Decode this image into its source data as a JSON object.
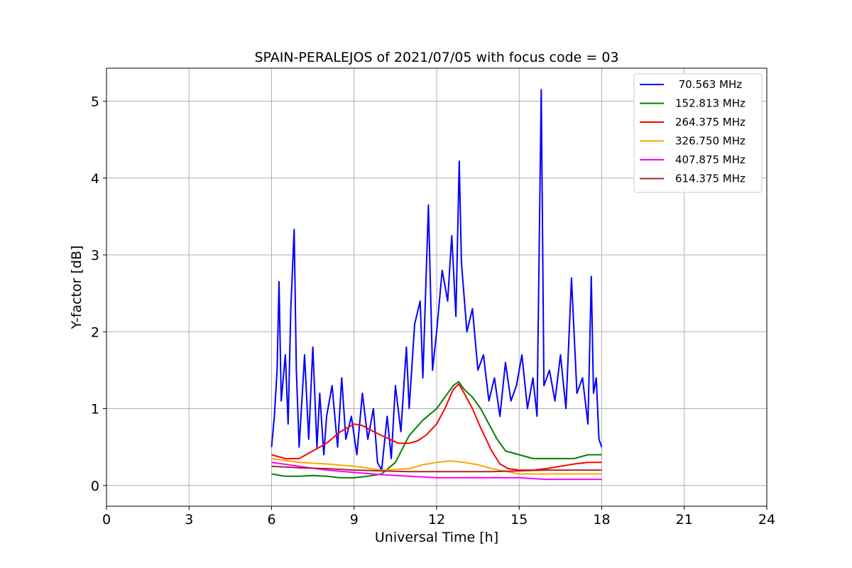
{
  "chart_data": {
    "type": "line",
    "title": "SPAIN-PERALEJOS of 2021/07/05 with focus code = 03",
    "xlabel": "Universal Time [h]",
    "ylabel": "Y-factor [dB]",
    "xlim": [
      0,
      24
    ],
    "ylim": [
      -0.27,
      5.43
    ],
    "xticks": [
      0,
      3,
      6,
      9,
      12,
      15,
      18,
      21,
      24
    ],
    "yticks": [
      0,
      1,
      2,
      3,
      4,
      5
    ],
    "grid": true,
    "legend_position": "top-right",
    "series": [
      {
        "name": " 70.563 MHz",
        "color": "#0000ff",
        "x": [
          6.0,
          6.1,
          6.2,
          6.27,
          6.35,
          6.5,
          6.6,
          6.7,
          6.82,
          6.9,
          7.0,
          7.2,
          7.35,
          7.5,
          7.65,
          7.75,
          7.9,
          8.0,
          8.2,
          8.4,
          8.55,
          8.7,
          8.9,
          9.1,
          9.3,
          9.5,
          9.7,
          9.85,
          10.0,
          10.2,
          10.35,
          10.5,
          10.7,
          10.9,
          11.0,
          11.2,
          11.4,
          11.5,
          11.7,
          11.85,
          12.0,
          12.2,
          12.4,
          12.55,
          12.7,
          12.82,
          12.9,
          13.1,
          13.3,
          13.5,
          13.7,
          13.9,
          14.1,
          14.3,
          14.5,
          14.7,
          14.9,
          15.1,
          15.3,
          15.5,
          15.65,
          15.8,
          15.9,
          16.1,
          16.3,
          16.5,
          16.7,
          16.9,
          17.1,
          17.3,
          17.5,
          17.62,
          17.7,
          17.8,
          17.9,
          18.0
        ],
        "y": [
          0.5,
          0.9,
          1.5,
          2.65,
          1.1,
          1.7,
          0.8,
          2.3,
          3.33,
          1.5,
          0.5,
          1.7,
          0.6,
          1.8,
          0.5,
          1.2,
          0.4,
          0.9,
          1.3,
          0.5,
          1.4,
          0.6,
          0.9,
          0.4,
          1.2,
          0.6,
          1.0,
          0.3,
          0.2,
          0.9,
          0.35,
          1.3,
          0.7,
          1.8,
          1.0,
          2.1,
          2.4,
          1.4,
          3.65,
          1.5,
          2.0,
          2.8,
          2.4,
          3.25,
          2.2,
          4.22,
          2.9,
          2.0,
          2.3,
          1.5,
          1.7,
          1.1,
          1.4,
          0.9,
          1.6,
          1.1,
          1.3,
          1.7,
          1.0,
          1.4,
          0.9,
          5.15,
          1.3,
          1.5,
          1.1,
          1.7,
          1.0,
          2.7,
          1.2,
          1.4,
          0.8,
          2.72,
          1.2,
          1.4,
          0.6,
          0.5
        ]
      },
      {
        "name": "152.813 MHz",
        "color": "#008000",
        "x": [
          6.0,
          6.5,
          7.0,
          7.5,
          8.0,
          8.5,
          9.0,
          9.5,
          10.0,
          10.5,
          11.0,
          11.5,
          12.0,
          12.3,
          12.6,
          12.8,
          13.0,
          13.3,
          13.6,
          13.9,
          14.2,
          14.5,
          15.0,
          15.5,
          16.0,
          16.5,
          17.0,
          17.5,
          18.0
        ],
        "y": [
          0.15,
          0.12,
          0.12,
          0.13,
          0.12,
          0.1,
          0.1,
          0.12,
          0.15,
          0.3,
          0.65,
          0.85,
          1.0,
          1.15,
          1.3,
          1.35,
          1.25,
          1.15,
          1.0,
          0.8,
          0.6,
          0.45,
          0.4,
          0.35,
          0.35,
          0.35,
          0.35,
          0.4,
          0.4
        ]
      },
      {
        "name": "264.375 MHz",
        "color": "#ff0000",
        "x": [
          6.0,
          6.5,
          7.0,
          7.5,
          8.0,
          8.5,
          9.0,
          9.3,
          9.6,
          10.0,
          10.3,
          10.6,
          11.0,
          11.3,
          11.6,
          12.0,
          12.3,
          12.6,
          12.8,
          13.0,
          13.3,
          13.6,
          14.0,
          14.3,
          14.6,
          15.0,
          15.5,
          16.0,
          16.5,
          17.0,
          17.5,
          18.0
        ],
        "y": [
          0.4,
          0.35,
          0.35,
          0.45,
          0.55,
          0.7,
          0.8,
          0.78,
          0.72,
          0.65,
          0.6,
          0.55,
          0.55,
          0.58,
          0.65,
          0.8,
          1.0,
          1.25,
          1.32,
          1.2,
          1.0,
          0.75,
          0.45,
          0.28,
          0.22,
          0.2,
          0.2,
          0.22,
          0.25,
          0.28,
          0.3,
          0.3
        ]
      },
      {
        "name": "326.750 MHz",
        "color": "#ffa500",
        "x": [
          6.0,
          7.0,
          8.0,
          9.0,
          10.0,
          11.0,
          11.5,
          12.0,
          12.5,
          13.0,
          13.5,
          14.0,
          15.0,
          16.0,
          17.0,
          18.0
        ],
        "y": [
          0.35,
          0.3,
          0.28,
          0.25,
          0.2,
          0.22,
          0.27,
          0.3,
          0.32,
          0.3,
          0.27,
          0.22,
          0.15,
          0.15,
          0.15,
          0.15
        ]
      },
      {
        "name": "407.875 MHz",
        "color": "#ff00ff",
        "x": [
          6.0,
          7.0,
          8.0,
          9.0,
          10.0,
          11.0,
          12.0,
          13.0,
          14.0,
          15.0,
          16.0,
          17.0,
          18.0
        ],
        "y": [
          0.3,
          0.25,
          0.2,
          0.17,
          0.14,
          0.12,
          0.1,
          0.1,
          0.1,
          0.1,
          0.08,
          0.08,
          0.08
        ]
      },
      {
        "name": "614.375 MHz",
        "color": "#a52a2a",
        "x": [
          6.0,
          7.0,
          8.0,
          9.0,
          10.0,
          11.0,
          12.0,
          13.0,
          14.0,
          15.0,
          16.0,
          17.0,
          18.0
        ],
        "y": [
          0.25,
          0.23,
          0.22,
          0.2,
          0.19,
          0.18,
          0.18,
          0.18,
          0.18,
          0.19,
          0.2,
          0.2,
          0.2
        ]
      }
    ]
  }
}
